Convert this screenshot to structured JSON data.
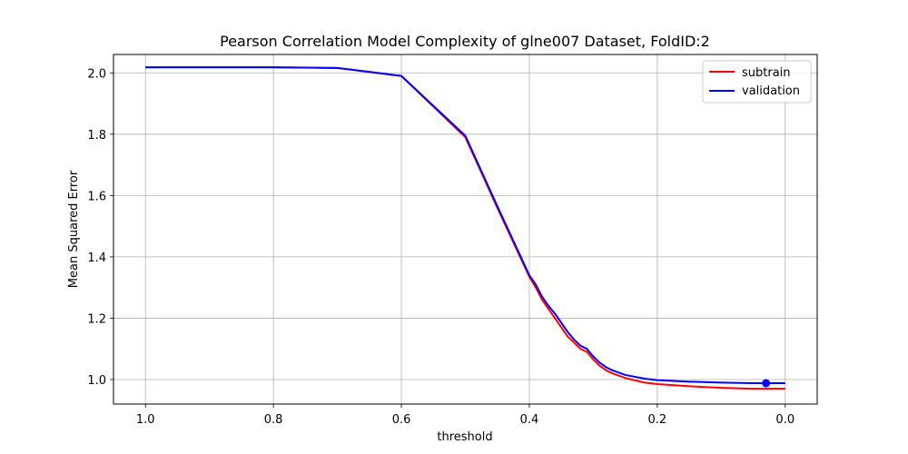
{
  "chart_data": {
    "type": "line",
    "title": "Pearson Correlation Model Complexity of glne007 Dataset, FoldID:2",
    "xlabel": "threshold",
    "ylabel": "Mean Squared Error",
    "xlim": [
      1.05,
      -0.05
    ],
    "ylim": [
      0.92,
      2.06
    ],
    "x_inverted": true,
    "grid": true,
    "legend_position": "top-right",
    "xticks": [
      1.0,
      0.8,
      0.6,
      0.4,
      0.2,
      0.0
    ],
    "xtick_labels": [
      "1.0",
      "0.8",
      "0.6",
      "0.4",
      "0.2",
      "0.0"
    ],
    "yticks": [
      1.0,
      1.2,
      1.4,
      1.6,
      1.8,
      2.0
    ],
    "ytick_labels": [
      "1.0",
      "1.2",
      "1.4",
      "1.6",
      "1.8",
      "2.0"
    ],
    "series": [
      {
        "name": "subtrain",
        "color": "#ff0000",
        "x": [
          1.0,
          0.9,
          0.8,
          0.7,
          0.6,
          0.5,
          0.45,
          0.4,
          0.39,
          0.38,
          0.37,
          0.36,
          0.35,
          0.34,
          0.33,
          0.32,
          0.31,
          0.3,
          0.29,
          0.28,
          0.27,
          0.25,
          0.22,
          0.2,
          0.15,
          0.1,
          0.05,
          0.03,
          0.0
        ],
        "y": [
          2.018,
          2.018,
          2.018,
          2.016,
          1.99,
          1.79,
          1.56,
          1.335,
          1.3,
          1.26,
          1.23,
          1.2,
          1.17,
          1.14,
          1.12,
          1.1,
          1.09,
          1.065,
          1.045,
          1.03,
          1.02,
          1.005,
          0.99,
          0.985,
          0.978,
          0.973,
          0.97,
          0.97,
          0.97
        ]
      },
      {
        "name": "validation",
        "color": "#0000ff",
        "x": [
          1.0,
          0.9,
          0.8,
          0.7,
          0.6,
          0.5,
          0.45,
          0.4,
          0.39,
          0.38,
          0.37,
          0.36,
          0.35,
          0.34,
          0.33,
          0.32,
          0.31,
          0.3,
          0.29,
          0.28,
          0.27,
          0.25,
          0.22,
          0.2,
          0.15,
          0.1,
          0.05,
          0.03,
          0.0
        ],
        "y": [
          2.018,
          2.018,
          2.018,
          2.016,
          1.99,
          1.795,
          1.565,
          1.34,
          1.31,
          1.27,
          1.24,
          1.215,
          1.185,
          1.155,
          1.13,
          1.11,
          1.1,
          1.075,
          1.055,
          1.04,
          1.03,
          1.015,
          1.003,
          0.998,
          0.993,
          0.99,
          0.988,
          0.988,
          0.988
        ]
      }
    ],
    "marker": {
      "x": 0.03,
      "y": 0.988,
      "color": "#0000ff"
    }
  }
}
